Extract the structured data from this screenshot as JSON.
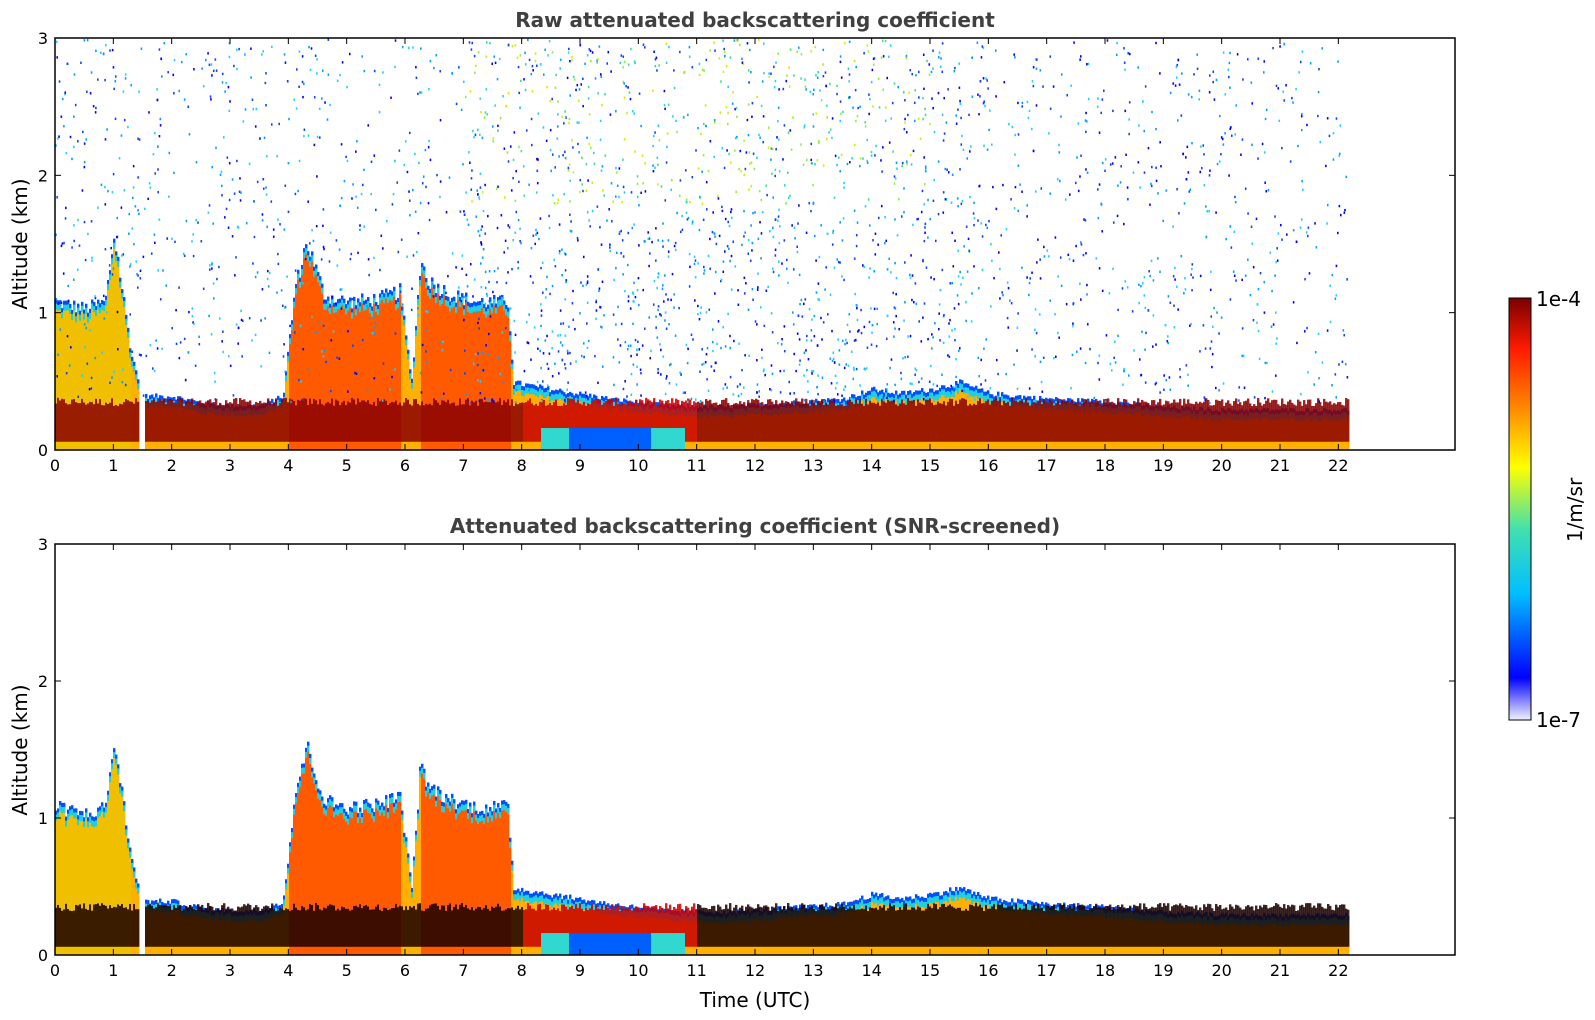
{
  "chart_data": [
    {
      "type": "heatmap",
      "title": "Raw attenuated backscattering coefficient",
      "xlabel": "",
      "ylabel": "Altitude (km)",
      "xlim": [
        0,
        24
      ],
      "ylim": [
        0,
        3
      ],
      "x_ticks": [
        "0",
        "1",
        "2",
        "3",
        "4",
        "5",
        "6",
        "7",
        "8",
        "9",
        "10",
        "11",
        "12",
        "13",
        "14",
        "15",
        "16",
        "17",
        "18",
        "19",
        "20",
        "21",
        "22"
      ],
      "y_ticks": [
        "0",
        "1",
        "2",
        "3"
      ],
      "data_end_time": 22.15,
      "noise_present": true,
      "grid": false
    },
    {
      "type": "heatmap",
      "title": "Attenuated backscattering coefficient (SNR-screened)",
      "xlabel": "Time (UTC)",
      "ylabel": "Altitude (km)",
      "xlim": [
        0,
        24
      ],
      "ylim": [
        0,
        3
      ],
      "x_ticks": [
        "0",
        "1",
        "2",
        "3",
        "4",
        "5",
        "6",
        "7",
        "8",
        "9",
        "10",
        "11",
        "12",
        "13",
        "14",
        "15",
        "16",
        "17",
        "18",
        "19",
        "20",
        "21",
        "22"
      ],
      "y_ticks": [
        "0",
        "1",
        "2",
        "3"
      ],
      "data_end_time": 22.15,
      "noise_present": false,
      "grid": false
    }
  ],
  "colorbar": {
    "min_label": "1e-7",
    "max_label": "1e-4",
    "unit_label": "1/m/sr",
    "scale": "log",
    "colormap": "jet"
  },
  "layer_top_km": {
    "times": [
      0,
      0.5,
      0.85,
      1.0,
      1.3,
      1.5,
      2.0,
      2.5,
      3.0,
      3.5,
      3.9,
      4.1,
      4.3,
      4.6,
      5.0,
      5.5,
      5.9,
      6.1,
      6.25,
      6.4,
      6.8,
      7.2,
      7.75,
      7.85,
      8.5,
      9.5,
      10.5,
      11.5,
      12.5,
      13.5,
      14.0,
      14.5,
      15.0,
      15.5,
      16.0,
      17.0,
      18.0,
      19.0,
      20.0,
      21.0,
      22.15
    ],
    "tops": [
      1.1,
      1.05,
      1.1,
      1.6,
      0.7,
      0.4,
      0.4,
      0.35,
      0.33,
      0.33,
      0.4,
      1.2,
      1.55,
      1.15,
      1.1,
      1.12,
      1.18,
      0.5,
      1.4,
      1.25,
      1.15,
      1.1,
      1.1,
      0.5,
      0.45,
      0.38,
      0.33,
      0.32,
      0.35,
      0.38,
      0.45,
      0.42,
      0.45,
      0.5,
      0.42,
      0.38,
      0.36,
      0.32,
      0.3,
      0.3,
      0.3
    ]
  },
  "colors": {
    "title": "#404040",
    "axis": "#000000"
  }
}
